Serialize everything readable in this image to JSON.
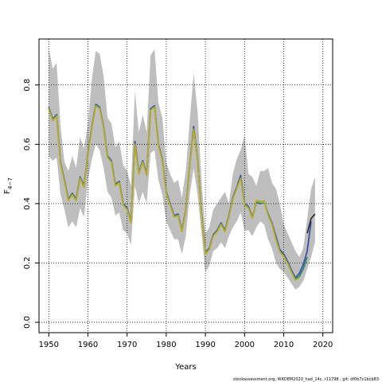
{
  "chart_data": {
    "type": "line",
    "xlabel": "Years",
    "ylabel_main": "F",
    "ylabel_sub": "4−7",
    "xlim": [
      1947.5,
      2022.5
    ],
    "ylim": [
      -0.035,
      0.955
    ],
    "x_ticks": [
      1950,
      1960,
      1970,
      1980,
      1990,
      2000,
      2010,
      2020
    ],
    "x_tick_labels": [
      "1950",
      "1960",
      "1970",
      "1980",
      "1990",
      "2000",
      "2010",
      "2020"
    ],
    "y_ticks": [
      0.0,
      0.2,
      0.4,
      0.6,
      0.8
    ],
    "y_tick_labels": [
      "0.0",
      "0.2",
      "0.4",
      "0.6",
      "0.8"
    ],
    "grid": true,
    "grid_style": "dotted",
    "footnote": "stockassessment.org, WKDEM2020_had_14c, r11798 , git: df0b7c1bcb83",
    "ci_color": "#bebebe",
    "band": {
      "years": [
        1950,
        1951,
        1952,
        1953,
        1954,
        1955,
        1956,
        1957,
        1958,
        1959,
        1960,
        1961,
        1962,
        1963,
        1964,
        1965,
        1966,
        1967,
        1968,
        1969,
        1970,
        1971,
        1972,
        1973,
        1974,
        1975,
        1976,
        1977,
        1978,
        1979,
        1980,
        1981,
        1982,
        1983,
        1984,
        1985,
        1986,
        1987,
        1988,
        1989,
        1990,
        1991,
        1992,
        1993,
        1994,
        1995,
        1996,
        1997,
        1998,
        1999,
        2000,
        2001,
        2002,
        2003,
        2004,
        2005,
        2006,
        2007,
        2008,
        2009,
        2010,
        2011,
        2012,
        2013,
        2014,
        2015,
        2016,
        2017,
        2018
      ],
      "lower": [
        0.56,
        0.545,
        0.555,
        0.43,
        0.38,
        0.32,
        0.34,
        0.32,
        0.385,
        0.355,
        0.48,
        0.55,
        0.6,
        0.58,
        0.52,
        0.44,
        0.42,
        0.36,
        0.37,
        0.31,
        0.3,
        0.26,
        0.46,
        0.4,
        0.44,
        0.4,
        0.57,
        0.58,
        0.48,
        0.43,
        0.34,
        0.31,
        0.28,
        0.28,
        0.23,
        0.29,
        0.43,
        0.52,
        0.43,
        0.3,
        0.17,
        0.19,
        0.24,
        0.25,
        0.27,
        0.25,
        0.29,
        0.32,
        0.34,
        0.37,
        0.31,
        0.31,
        0.29,
        0.32,
        0.34,
        0.33,
        0.28,
        0.25,
        0.2,
        0.18,
        0.17,
        0.15,
        0.13,
        0.11,
        0.12,
        0.14,
        0.18,
        0.22,
        0.27
      ],
      "upper": [
        0.925,
        0.855,
        0.875,
        0.66,
        0.54,
        0.51,
        0.56,
        0.52,
        0.625,
        0.585,
        0.67,
        0.82,
        0.915,
        0.905,
        0.83,
        0.69,
        0.67,
        0.59,
        0.61,
        0.53,
        0.51,
        0.46,
        0.78,
        0.64,
        0.7,
        0.64,
        0.9,
        0.92,
        0.74,
        0.69,
        0.54,
        0.5,
        0.47,
        0.48,
        0.42,
        0.51,
        0.68,
        0.84,
        0.71,
        0.48,
        0.3,
        0.32,
        0.38,
        0.4,
        0.42,
        0.44,
        0.4,
        0.5,
        0.55,
        0.58,
        0.63,
        0.5,
        0.49,
        0.46,
        0.51,
        0.51,
        0.52,
        0.47,
        0.45,
        0.4,
        0.33,
        0.3,
        0.27,
        0.24,
        0.22,
        0.25,
        0.35,
        0.45,
        0.49
      ]
    },
    "series": [
      {
        "color": "#3d4fa6",
        "width": 1.8,
        "x": [
          1950,
          1951,
          1952,
          1953,
          1954,
          1955,
          1956,
          1957,
          1958,
          1959,
          1960,
          1961,
          1962,
          1963,
          1964,
          1965,
          1966,
          1967,
          1968,
          1969,
          1970,
          1971,
          1972,
          1973,
          1974,
          1975,
          1976,
          1977,
          1978,
          1979,
          1980,
          1981,
          1982,
          1983,
          1984,
          1985,
          1986,
          1987,
          1988,
          1989,
          1990,
          1991,
          1992,
          1993,
          1994,
          1995,
          1996,
          1997,
          1998,
          1999,
          2000,
          2001,
          2002,
          2003,
          2004,
          2005,
          2006,
          2007,
          2008,
          2009,
          2010,
          2011,
          2012,
          2013,
          2014,
          2015,
          2016,
          2017
        ],
        "y": [
          0.725,
          0.685,
          0.7,
          0.54,
          0.48,
          0.415,
          0.435,
          0.415,
          0.49,
          0.46,
          0.57,
          0.66,
          0.735,
          0.725,
          0.66,
          0.56,
          0.545,
          0.465,
          0.475,
          0.4,
          0.385,
          0.34,
          0.61,
          0.505,
          0.545,
          0.5,
          0.72,
          0.73,
          0.6,
          0.55,
          0.44,
          0.4,
          0.36,
          0.365,
          0.31,
          0.38,
          0.53,
          0.66,
          0.55,
          0.37,
          0.235,
          0.25,
          0.295,
          0.31,
          0.335,
          0.31,
          0.36,
          0.42,
          0.455,
          0.495,
          0.4,
          0.39,
          0.355,
          0.405,
          0.4,
          0.405,
          0.365,
          0.335,
          0.29,
          0.245,
          0.23,
          0.205,
          0.175,
          0.15,
          0.165,
          0.195,
          0.24,
          0.34
        ]
      },
      {
        "color": "#2a8a6a",
        "width": 1.8,
        "x": [
          1950,
          1951,
          1952,
          1953,
          1954,
          1955,
          1956,
          1957,
          1958,
          1959,
          1960,
          1961,
          1962,
          1963,
          1964,
          1965,
          1966,
          1967,
          1968,
          1969,
          1970,
          1971,
          1972,
          1973,
          1974,
          1975,
          1976,
          1977,
          1978,
          1979,
          1980,
          1981,
          1982,
          1983,
          1984,
          1985,
          1986,
          1987,
          1988,
          1989,
          1990,
          1991,
          1992,
          1993,
          1994,
          1995,
          1996,
          1997,
          1998,
          1999,
          2000,
          2001,
          2002,
          2003,
          2004,
          2005,
          2006,
          2007,
          2008,
          2009,
          2010,
          2011,
          2012,
          2013,
          2014,
          2015,
          2016
        ],
        "y": [
          0.722,
          0.682,
          0.697,
          0.537,
          0.477,
          0.412,
          0.432,
          0.412,
          0.487,
          0.457,
          0.567,
          0.657,
          0.732,
          0.722,
          0.657,
          0.557,
          0.542,
          0.462,
          0.472,
          0.397,
          0.382,
          0.337,
          0.602,
          0.502,
          0.542,
          0.497,
          0.717,
          0.727,
          0.597,
          0.547,
          0.437,
          0.397,
          0.357,
          0.362,
          0.307,
          0.377,
          0.527,
          0.652,
          0.547,
          0.367,
          0.232,
          0.247,
          0.292,
          0.307,
          0.332,
          0.307,
          0.357,
          0.417,
          0.452,
          0.487,
          0.397,
          0.387,
          0.352,
          0.407,
          0.402,
          0.407,
          0.362,
          0.332,
          0.282,
          0.24,
          0.225,
          0.2,
          0.17,
          0.145,
          0.155,
          0.18,
          0.22
        ]
      },
      {
        "color": "#8ec63f",
        "width": 1.8,
        "x": [
          1950,
          1951,
          1952,
          1953,
          1954,
          1955,
          1956,
          1957,
          1958,
          1959,
          1960,
          1961,
          1962,
          1963,
          1964,
          1965,
          1966,
          1967,
          1968,
          1969,
          1970,
          1971,
          1972,
          1973,
          1974,
          1975,
          1976,
          1977,
          1978,
          1979,
          1980,
          1981,
          1982,
          1983,
          1984,
          1985,
          1986,
          1987,
          1988,
          1989,
          1990,
          1991,
          1992,
          1993,
          1994,
          1995,
          1996,
          1997,
          1998,
          1999,
          2000,
          2001,
          2002,
          2003,
          2004,
          2005,
          2006,
          2007,
          2008,
          2009,
          2010,
          2011,
          2012,
          2013,
          2014
        ],
        "y": [
          0.72,
          0.68,
          0.695,
          0.535,
          0.475,
          0.41,
          0.43,
          0.41,
          0.485,
          0.455,
          0.565,
          0.655,
          0.73,
          0.72,
          0.655,
          0.555,
          0.54,
          0.46,
          0.47,
          0.395,
          0.38,
          0.335,
          0.6,
          0.5,
          0.54,
          0.495,
          0.715,
          0.725,
          0.595,
          0.545,
          0.435,
          0.395,
          0.355,
          0.36,
          0.305,
          0.375,
          0.525,
          0.65,
          0.545,
          0.365,
          0.23,
          0.245,
          0.29,
          0.305,
          0.33,
          0.305,
          0.355,
          0.415,
          0.45,
          0.485,
          0.395,
          0.385,
          0.35,
          0.41,
          0.405,
          0.405,
          0.36,
          0.33,
          0.28,
          0.238,
          0.222,
          0.198,
          0.168,
          0.142,
          0.15
        ]
      },
      {
        "color": "#c9a227",
        "width": 1.3,
        "x": [
          1950,
          1951,
          1952,
          1953,
          1954,
          1955,
          1956,
          1957,
          1958,
          1959,
          1960,
          1961,
          1962,
          1963,
          1964,
          1965,
          1966,
          1967,
          1968,
          1969,
          1970,
          1971,
          1972,
          1973,
          1974,
          1975,
          1976,
          1977,
          1978,
          1979,
          1980,
          1981,
          1982,
          1983,
          1984,
          1985,
          1986,
          1987,
          1988,
          1989,
          1990,
          1991,
          1992,
          1993,
          1994,
          1995,
          1996,
          1997,
          1998,
          1999,
          2000,
          2001,
          2002,
          2003,
          2004,
          2005,
          2006,
          2007,
          2008,
          2009,
          2010,
          2011,
          2012,
          2013
        ],
        "y": [
          0.72,
          0.68,
          0.695,
          0.535,
          0.475,
          0.41,
          0.43,
          0.41,
          0.485,
          0.455,
          0.565,
          0.655,
          0.73,
          0.72,
          0.655,
          0.555,
          0.54,
          0.46,
          0.47,
          0.395,
          0.38,
          0.335,
          0.6,
          0.5,
          0.54,
          0.495,
          0.715,
          0.725,
          0.595,
          0.545,
          0.435,
          0.395,
          0.355,
          0.36,
          0.305,
          0.375,
          0.525,
          0.65,
          0.545,
          0.365,
          0.23,
          0.245,
          0.29,
          0.305,
          0.33,
          0.305,
          0.355,
          0.415,
          0.45,
          0.485,
          0.395,
          0.385,
          0.35,
          0.412,
          0.408,
          0.41,
          0.362,
          0.332,
          0.28,
          0.238,
          0.222,
          0.198,
          0.168,
          0.142
        ]
      },
      {
        "color": "#222222",
        "width": 1.5,
        "x": [
          2016,
          2017,
          2018
        ],
        "y": [
          0.3,
          0.35,
          0.365
        ]
      }
    ]
  }
}
